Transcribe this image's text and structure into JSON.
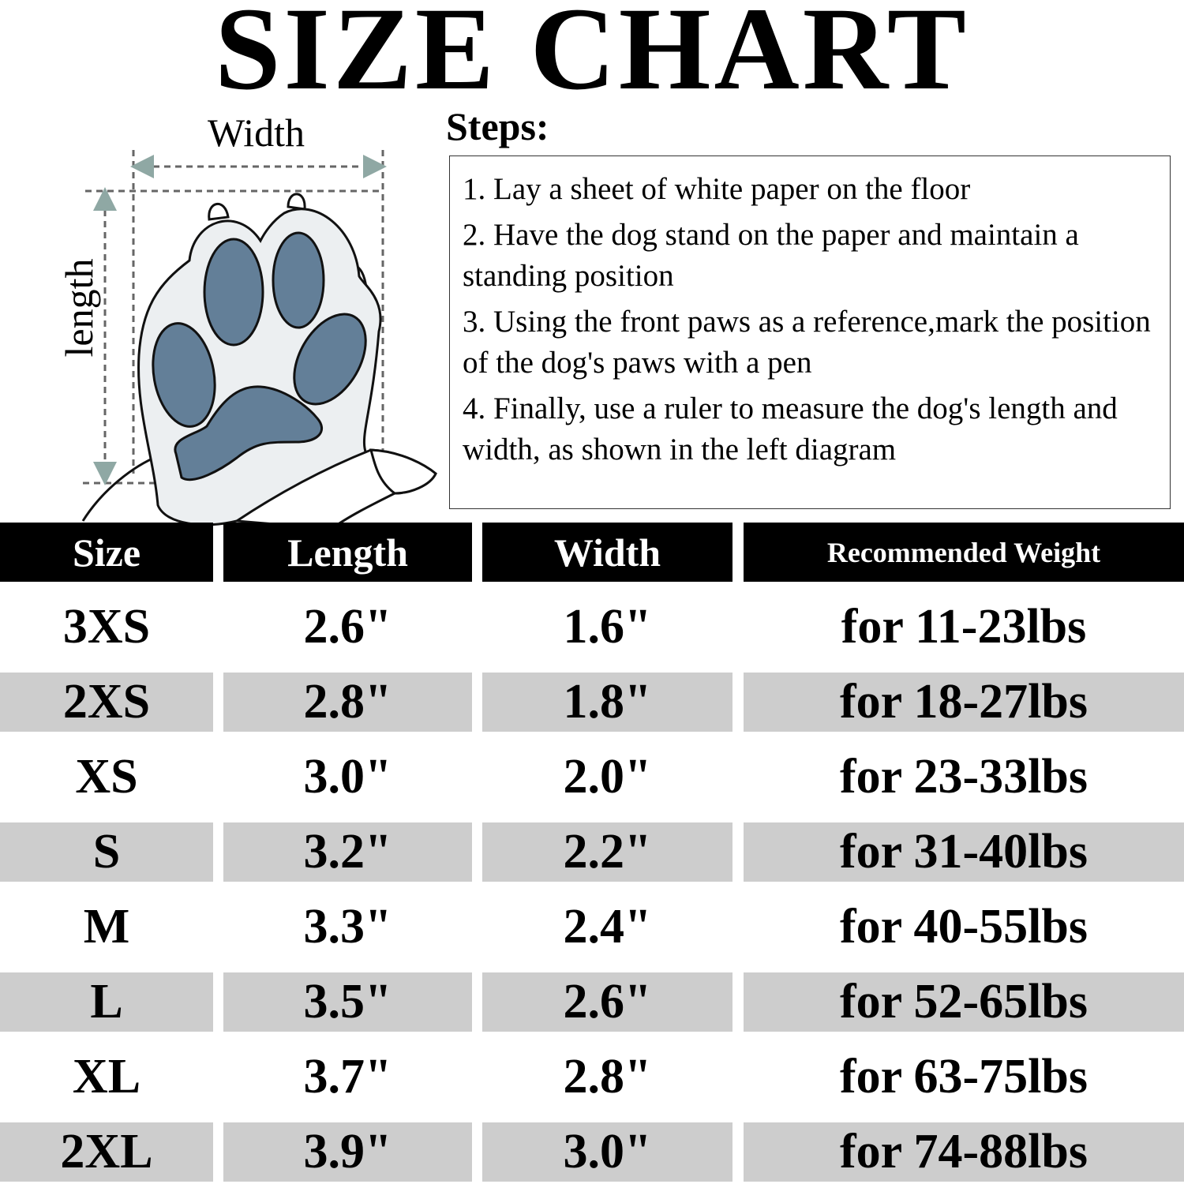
{
  "title": "SIZE CHART",
  "diagram": {
    "width_label": "Width",
    "length_label": "length",
    "icon": "dog-paw-measurement-icon",
    "pad_color": "#637f98",
    "paw_color": "#eceff1",
    "arrow_color": "#8fa8a4"
  },
  "steps": {
    "label": "Steps:",
    "items": [
      "1. Lay a sheet of white paper on the floor",
      "2. Have the dog stand on the paper and maintain a standing position",
      "3. Using the front paws as a reference,mark the position of the dog's paws with a pen",
      "4. Finally, use a ruler to measure the dog's length and width, as shown in the left diagram"
    ]
  },
  "table": {
    "headers": [
      "Size",
      "Length",
      "Width",
      "Recommended Weight"
    ],
    "rows": [
      [
        "3XS",
        "2.6\"",
        "1.6\"",
        "for 11-23lbs"
      ],
      [
        "2XS",
        "2.8\"",
        "1.8\"",
        "for 18-27lbs"
      ],
      [
        "XS",
        "3.0\"",
        "2.0\"",
        "for 23-33lbs"
      ],
      [
        "S",
        "3.2\"",
        "2.2\"",
        "for 31-40lbs"
      ],
      [
        "M",
        "3.3\"",
        "2.4\"",
        "for 40-55lbs"
      ],
      [
        "L",
        "3.5\"",
        "2.6\"",
        "for 52-65lbs"
      ],
      [
        "XL",
        "3.7\"",
        "2.8\"",
        "for 63-75lbs"
      ],
      [
        "2XL",
        "3.9\"",
        "3.0\"",
        "for 74-88lbs"
      ]
    ],
    "header_bg": "#000000",
    "stripe_color": "#cdcdcd"
  }
}
